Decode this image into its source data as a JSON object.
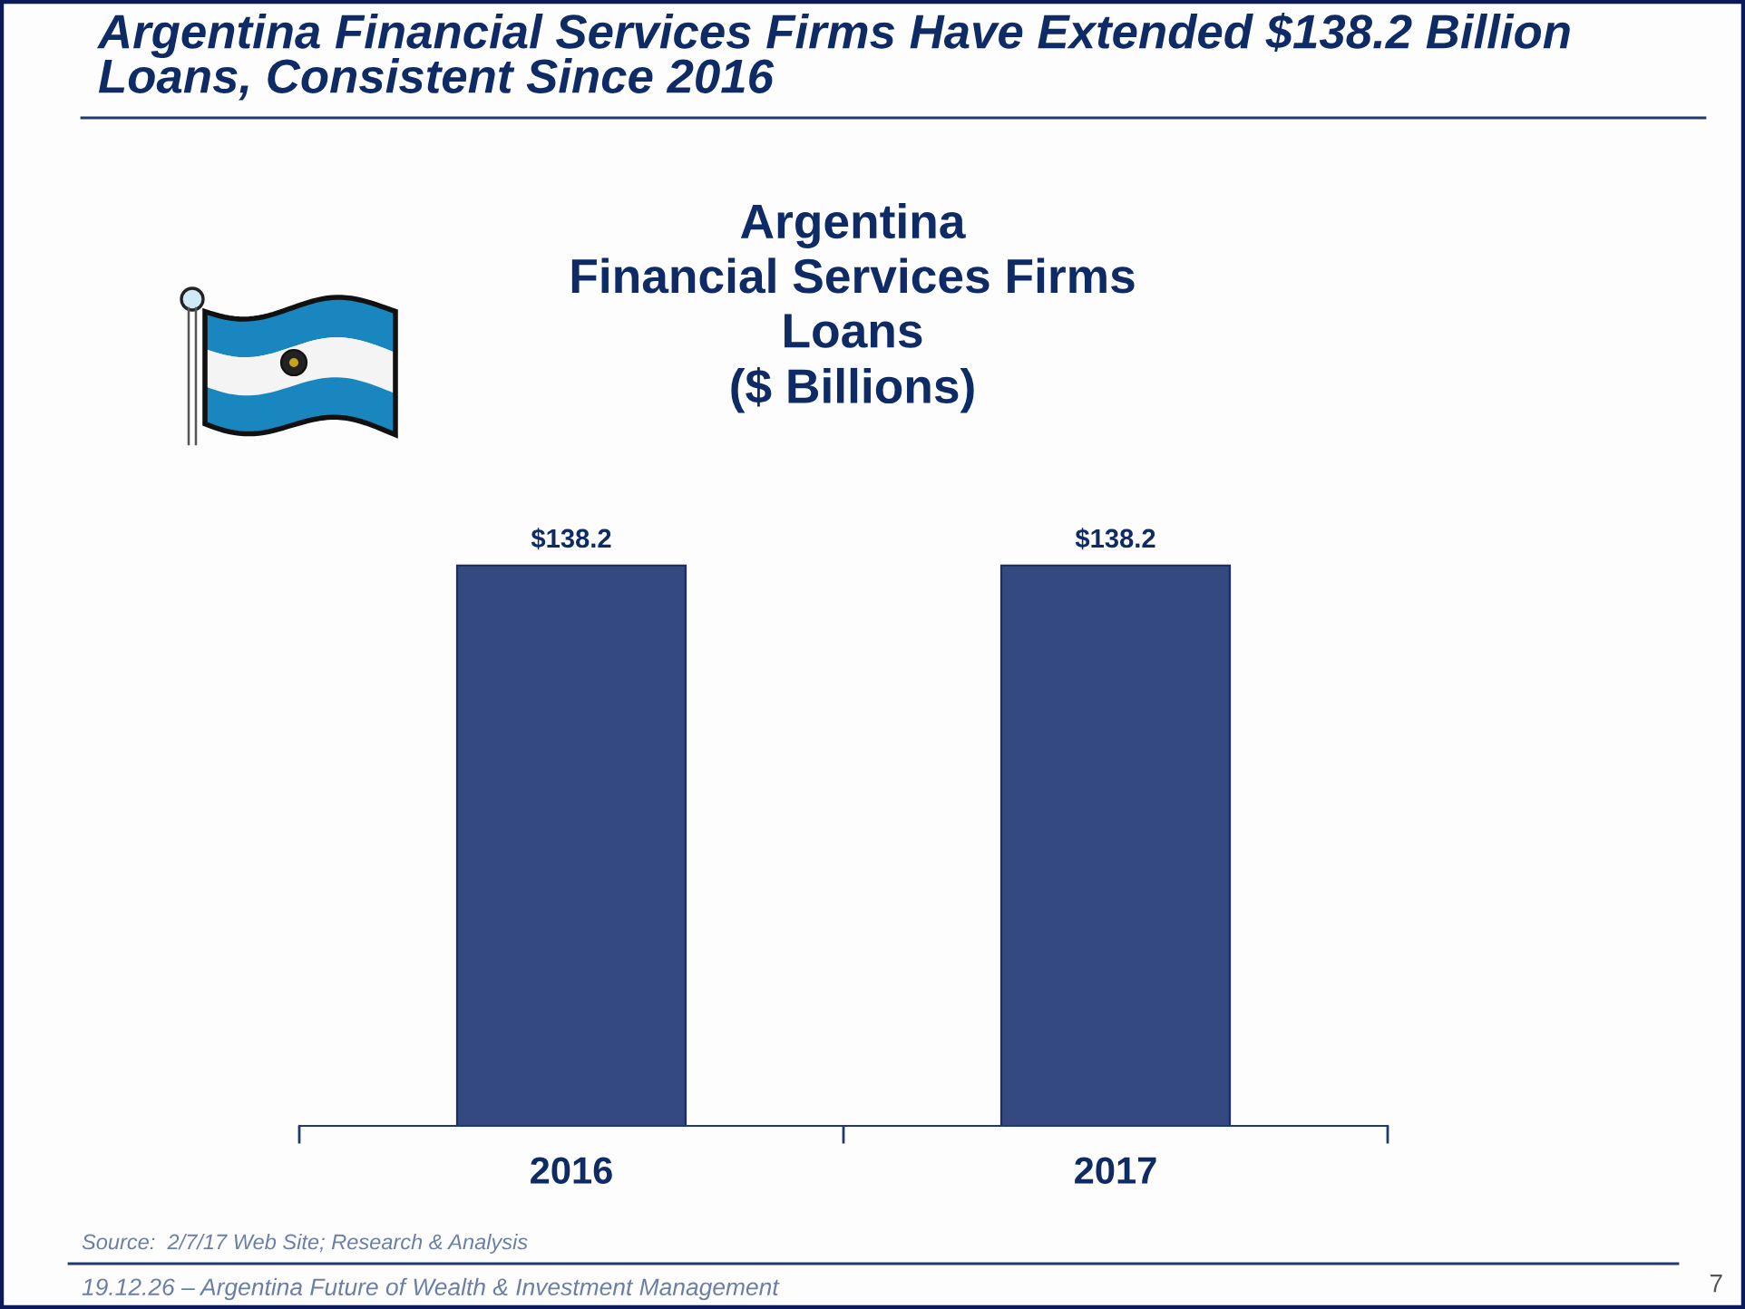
{
  "chart_data": {
    "type": "bar",
    "title": "Argentina Financial Services Firms Have Extended $138.2 Billion\nLoans, Consistent Since 2016",
    "subtitle": "Argentina\nFinancial Services Firms\nLoans\n($ Billions)",
    "categories": [
      "2016",
      "2017"
    ],
    "values": [
      138.2,
      138.2
    ],
    "value_labels": [
      "$138.2",
      "$138.2"
    ],
    "color": "#34497f",
    "annotations": [
      "Source:  2/7/17 Web Site; Research & Analysis",
      "19.12.26 – Argentina Future of Wealth & Investment Management",
      "7"
    ],
    "grid": false,
    "legend": false
  }
}
